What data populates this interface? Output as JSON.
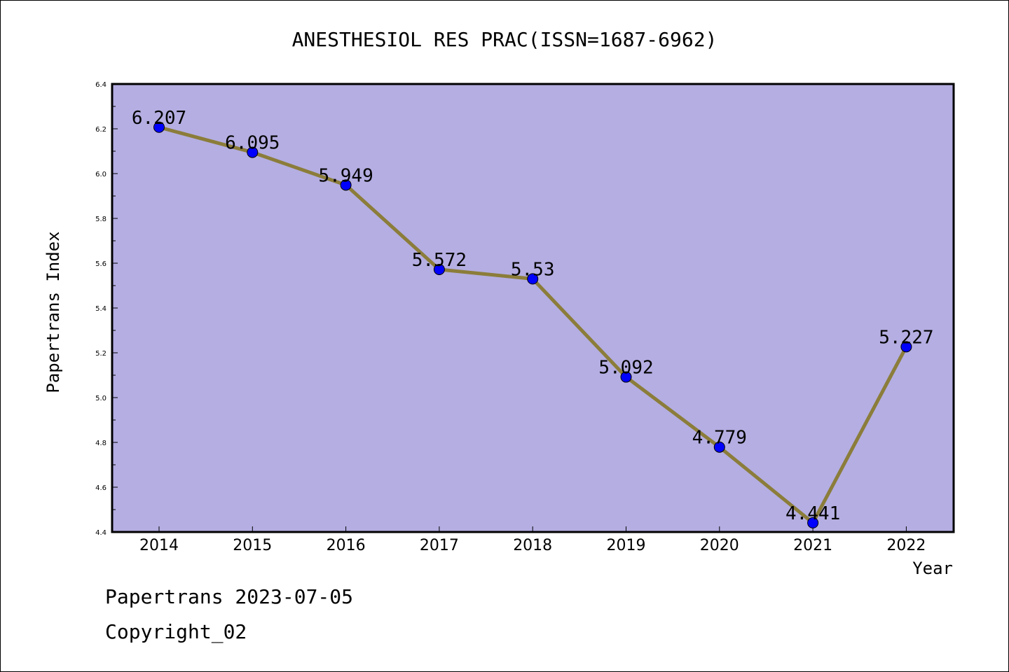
{
  "chart_data": {
    "type": "line",
    "title": "ANESTHESIOL RES PRAC(ISSN=1687-6962)",
    "xlabel": "Year",
    "ylabel": "Papertrans Index",
    "categories": [
      "2014",
      "2015",
      "2016",
      "2017",
      "2018",
      "2019",
      "2020",
      "2021",
      "2022"
    ],
    "values": [
      6.207,
      6.095,
      5.949,
      5.572,
      5.53,
      5.092,
      4.779,
      4.441,
      5.227
    ],
    "data_labels": [
      "6.207",
      "6.095",
      "5.949",
      "5.572",
      "5.53",
      "5.092",
      "4.779",
      "4.441",
      "5.227"
    ],
    "ylim": [
      4.4,
      6.4
    ],
    "yticks": [
      "4.4",
      "4.6",
      "4.8",
      "5.0",
      "5.2",
      "5.4",
      "5.6",
      "5.8",
      "6.0",
      "6.2",
      "6.4"
    ],
    "grid": false,
    "colors": {
      "plot_background": "#b4aee2",
      "line": "#8b7d3a",
      "marker": "#0000ff"
    }
  },
  "footer": {
    "line1": "Papertrans 2023-07-05",
    "line2": "Copyright_02"
  }
}
